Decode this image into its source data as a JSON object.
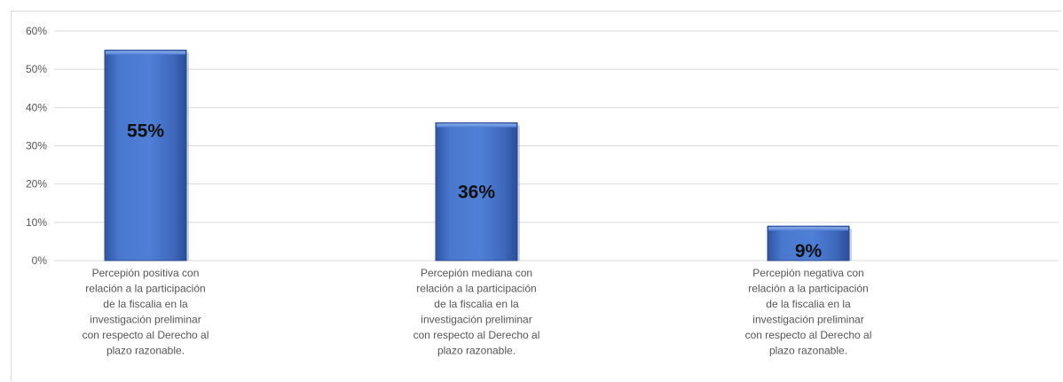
{
  "chart_data": {
    "type": "bar",
    "title": "",
    "xlabel": "",
    "ylabel": "",
    "ylim": [
      0,
      60
    ],
    "y_ticks": [
      "0%",
      "10%",
      "20%",
      "30%",
      "40%",
      "50%",
      "60%"
    ],
    "y_tick_values": [
      0,
      10,
      20,
      30,
      40,
      50,
      60
    ],
    "grid": true,
    "legend": "none",
    "bar_color": "#4472C4",
    "categories": [
      [
        "Percepión positiva con",
        "relación a la participación",
        "de la fiscalia en la",
        "investigación preliminar",
        "con respecto al Derecho al",
        "plazo razonable."
      ],
      [
        "Percepión mediana con",
        "relación a la participación",
        "de la fiscalia en la",
        "investigación preliminar",
        "con respecto al Derecho al",
        "plazo razonable."
      ],
      [
        "Percepión negativa con",
        "relación a la participación",
        "de la fiscalia en la",
        "investigación preliminar",
        "con respecto al Derecho al",
        "plazo razonable."
      ]
    ],
    "values": [
      55,
      36,
      9
    ],
    "data_labels": [
      "55%",
      "36%",
      "9%"
    ]
  }
}
